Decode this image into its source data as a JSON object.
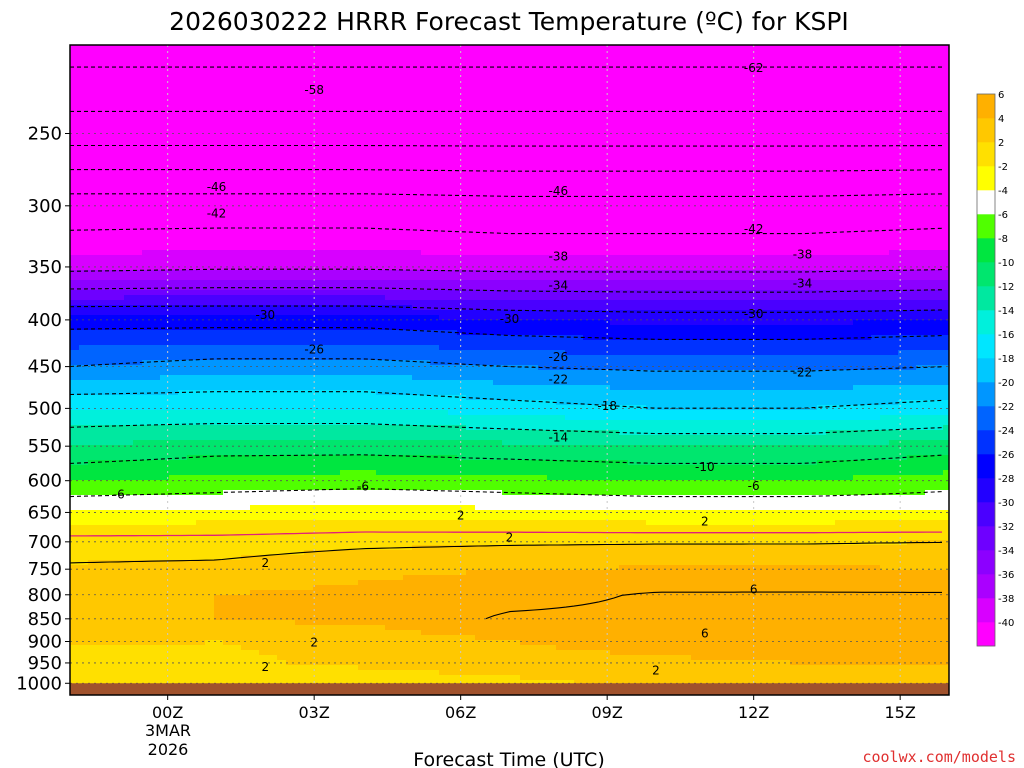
{
  "chart_data": {
    "type": "heatmap",
    "title": "2026030222 HRRR Forecast Temperature (ºC) for KSPI",
    "xlabel": "Forecast Time (UTC)",
    "ylabel": "",
    "x_ticks": [
      {
        "label": "00Z",
        "hour": 0
      },
      {
        "label": "03Z",
        "hour": 3
      },
      {
        "label": "06Z",
        "hour": 6
      },
      {
        "label": "09Z",
        "hour": 9
      },
      {
        "label": "12Z",
        "hour": 12
      },
      {
        "label": "15Z",
        "hour": 15
      }
    ],
    "x_date_line1": "3MAR",
    "x_date_line2": "2026",
    "xlim_hours": [
      -2,
      16
    ],
    "y_ticks": [
      250,
      300,
      350,
      400,
      450,
      500,
      550,
      600,
      650,
      700,
      750,
      800,
      850,
      900,
      950,
      1000
    ],
    "ylim_hpa": [
      200,
      1030
    ],
    "ground_level_hpa": 1000,
    "colorbar": {
      "colors": [
        "#ff00ff",
        "#d800ff",
        "#aa00ff",
        "#8c00ff",
        "#6e00ff",
        "#4a00ff",
        "#2200ff",
        "#0000ff",
        "#0032ff",
        "#0064ff",
        "#0096ff",
        "#00c8ff",
        "#00e6ff",
        "#00f0dc",
        "#00e8a0",
        "#00e66e",
        "#00e640",
        "#50ff00",
        "#ffffff",
        "#ffff00",
        "#ffe000",
        "#ffc800",
        "#ffb000"
      ],
      "labels": [
        "-40",
        "-38",
        "-36",
        "-34",
        "-32",
        "-30",
        "-28",
        "-26",
        "-24",
        "-22",
        "-20",
        "-18",
        "-16",
        "-14",
        "-12",
        "-10",
        "-8",
        "-6",
        "-4",
        "-2",
        "2",
        "4",
        "6"
      ]
    },
    "levels": [
      {
        "p": 200,
        "temps": [
          -64,
          -64,
          -64,
          -64,
          -64,
          -64,
          -64
        ]
      },
      {
        "p": 250,
        "temps": [
          -56,
          -56,
          -56,
          -56,
          -56,
          -56,
          -56
        ]
      },
      {
        "p": 300,
        "temps": [
          -44,
          -44,
          -44,
          -44.5,
          -44.5,
          -44.5,
          -44
        ]
      },
      {
        "p": 350,
        "temps": [
          -39,
          -38.5,
          -38.5,
          -39,
          -39,
          -39,
          -38.5
        ]
      },
      {
        "p": 400,
        "temps": [
          -27,
          -27,
          -27,
          -28,
          -28.5,
          -28.5,
          -28
        ]
      },
      {
        "p": 450,
        "temps": [
          -22,
          -21,
          -21,
          -22,
          -22.5,
          -22.5,
          -22
        ]
      },
      {
        "p": 500,
        "temps": [
          -16,
          -16,
          -16,
          -17,
          -18,
          -18,
          -17
        ]
      },
      {
        "p": 550,
        "temps": [
          -12,
          -11,
          -11,
          -11.5,
          -12,
          -12,
          -11
        ]
      },
      {
        "p": 600,
        "temps": [
          -8,
          -7.5,
          -7,
          -7.5,
          -8,
          -8,
          -7
        ]
      },
      {
        "p": 650,
        "temps": [
          -4,
          -3.5,
          -3,
          -3.5,
          -4,
          -4,
          -4
        ]
      },
      {
        "p": 700,
        "temps": [
          1,
          1,
          1.5,
          1.7,
          1.8,
          1.8,
          2
        ]
      },
      {
        "p": 750,
        "temps": [
          2.3,
          2.5,
          3.5,
          4,
          4.2,
          4.3,
          4
        ]
      },
      {
        "p": 800,
        "temps": [
          3,
          4,
          4.5,
          5.3,
          6.2,
          6.2,
          6.2
        ]
      },
      {
        "p": 850,
        "temps": [
          3.2,
          4,
          4.6,
          6.3,
          6.4,
          6.4,
          6.3
        ]
      },
      {
        "p": 900,
        "temps": [
          2.2,
          2,
          2.5,
          4,
          5,
          5.5,
          6
        ]
      },
      {
        "p": 950,
        "temps": [
          1,
          1.7,
          2.3,
          3,
          3.5,
          4,
          4
        ]
      },
      {
        "p": 1000,
        "temps": [
          0,
          0.5,
          1,
          1.5,
          2.5,
          3,
          3
        ]
      }
    ],
    "contour_values": [
      -62,
      -58,
      -54,
      -50,
      -46,
      -42,
      -38,
      -34,
      -30,
      -26,
      -22,
      -18,
      -14,
      -10,
      -6,
      2,
      6
    ],
    "contour_labels": [
      {
        "text": "-62",
        "hour": 12,
        "p": 212
      },
      {
        "text": "-58",
        "hour": 3,
        "p": 224
      },
      {
        "text": "-46",
        "hour": 1,
        "p": 286
      },
      {
        "text": "-46",
        "hour": 8,
        "p": 289
      },
      {
        "text": "-42",
        "hour": 1,
        "p": 306
      },
      {
        "text": "-42",
        "hour": 12,
        "p": 318
      },
      {
        "text": "-38",
        "hour": 8,
        "p": 341
      },
      {
        "text": "-38",
        "hour": 13,
        "p": 339
      },
      {
        "text": "-34",
        "hour": 8,
        "p": 367
      },
      {
        "text": "-34",
        "hour": 13,
        "p": 365
      },
      {
        "text": "-30",
        "hour": 2,
        "p": 395
      },
      {
        "text": "-30",
        "hour": 7,
        "p": 399
      },
      {
        "text": "-30",
        "hour": 12,
        "p": 394
      },
      {
        "text": "-26",
        "hour": 3,
        "p": 431
      },
      {
        "text": "-26",
        "hour": 8,
        "p": 439
      },
      {
        "text": "-22",
        "hour": 8,
        "p": 465
      },
      {
        "text": "-22",
        "hour": 13,
        "p": 457
      },
      {
        "text": "-18",
        "hour": 9,
        "p": 497
      },
      {
        "text": "-14",
        "hour": 8,
        "p": 538
      },
      {
        "text": "-10",
        "hour": 11,
        "p": 580
      },
      {
        "text": "-6",
        "hour": -1,
        "p": 621
      },
      {
        "text": "-6",
        "hour": 4,
        "p": 609
      },
      {
        "text": "-6",
        "hour": 12,
        "p": 608
      },
      {
        "text": "2",
        "hour": 6,
        "p": 655
      },
      {
        "text": "2",
        "hour": 11,
        "p": 665
      },
      {
        "text": "2",
        "hour": 7,
        "p": 692
      },
      {
        "text": "2",
        "hour": 2,
        "p": 738
      },
      {
        "text": "6",
        "hour": 12,
        "p": 789
      },
      {
        "text": "6",
        "hour": 11,
        "p": 882
      },
      {
        "text": "2",
        "hour": 3,
        "p": 902
      },
      {
        "text": "2",
        "hour": 2,
        "p": 960
      },
      {
        "text": "2",
        "hour": 10,
        "p": 968
      }
    ],
    "freezing_line_color": "#e0207a",
    "ground_color": "#a0522d"
  },
  "watermark": "coolwx.com/models"
}
